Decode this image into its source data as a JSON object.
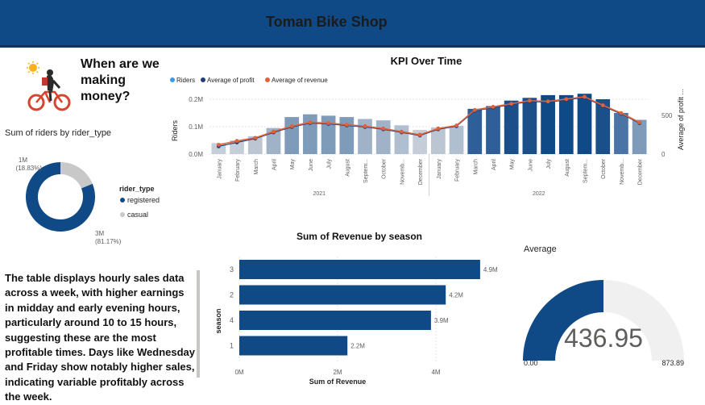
{
  "header": {
    "title": "Toman Bike Shop"
  },
  "question": {
    "title": "When are we making money?"
  },
  "donut": {
    "title": "Sum of riders by rider_type",
    "legend_title": "rider_type",
    "slices": [
      {
        "name": "registered",
        "value_label": "3M",
        "pct_label": "(81.17%)",
        "pct": 81.17,
        "color": "#104a86"
      },
      {
        "name": "casual",
        "value_label": "1M",
        "pct_label": "(18.83%)",
        "pct": 18.83,
        "color": "#c8c8c8"
      }
    ]
  },
  "insight_text": "The table displays hourly sales data across a week, with higher earnings in midday and early evening hours, particularly around 10 to 15 hours, suggesting these are the most profitable times. Days like Wednesday and Friday show notably higher sales, indicating variable profitably across the week.",
  "gauge": {
    "title": "Average",
    "value_label": "436.95",
    "value": 436.95,
    "min_label": "0.00",
    "min": 0,
    "max_label": "873.89",
    "max": 873.89,
    "fill_color": "#104a86",
    "track_color": "#f0f0f0"
  },
  "chart_data": [
    {
      "type": "bar",
      "title": "KPI Over Time",
      "legend": [
        "Riders",
        "Average of profit",
        "Average of revenue"
      ],
      "ylabel": "Riders",
      "y2label": "Average of profit ...",
      "yticks": [
        "0.0M",
        "0.1M",
        "0.2M"
      ],
      "y2ticks": [
        "0",
        "500"
      ],
      "ylim": [
        0,
        250000
      ],
      "y2lim": [
        0,
        1000
      ],
      "years": [
        "2021",
        "2022"
      ],
      "categories": [
        "January",
        "February",
        "March",
        "April",
        "May",
        "June",
        "July",
        "August",
        "Septem...",
        "October",
        "Novemb...",
        "December",
        "January",
        "February",
        "March",
        "April",
        "May",
        "June",
        "July",
        "August",
        "Septem...",
        "October",
        "Novemb...",
        "December"
      ],
      "series": [
        {
          "name": "Riders",
          "values": [
            40000,
            50000,
            65000,
            95000,
            135000,
            145000,
            140000,
            135000,
            128000,
            123000,
            105000,
            88000,
            97000,
            103000,
            165000,
            175000,
            195000,
            205000,
            215000,
            215000,
            220000,
            200000,
            150000,
            125000
          ]
        },
        {
          "name": "Average of profit",
          "values": [
            100,
            150,
            200,
            280,
            350,
            400,
            390,
            370,
            350,
            320,
            280,
            240,
            320,
            360,
            560,
            600,
            640,
            680,
            670,
            700,
            730,
            620,
            520,
            400
          ]
        },
        {
          "name": "Average of revenue",
          "values": [
            120,
            170,
            210,
            290,
            360,
            410,
            400,
            380,
            360,
            330,
            290,
            250,
            330,
            370,
            570,
            610,
            650,
            690,
            680,
            710,
            740,
            630,
            530,
            410
          ]
        }
      ],
      "colors": {
        "riders_2021_light": "#c5cdd8",
        "riders_dark": "#104a86",
        "profit": "#1f3e7a",
        "revenue": "#e0623b",
        "legend_riders": "#3b99e8"
      }
    },
    {
      "type": "bar",
      "orientation": "horizontal",
      "title": "Sum of Revenue by season",
      "xlabel": "Sum of Revenue",
      "ylabel": "season",
      "categories": [
        "3",
        "2",
        "4",
        "1"
      ],
      "values": [
        4.9,
        4.2,
        3.9,
        2.2
      ],
      "value_labels": [
        "4.9M",
        "4.2M",
        "3.9M",
        "2.2M"
      ],
      "xticks": [
        "0M",
        "2M",
        "4M"
      ],
      "xlim": [
        0,
        6
      ],
      "color": "#104a86"
    }
  ]
}
